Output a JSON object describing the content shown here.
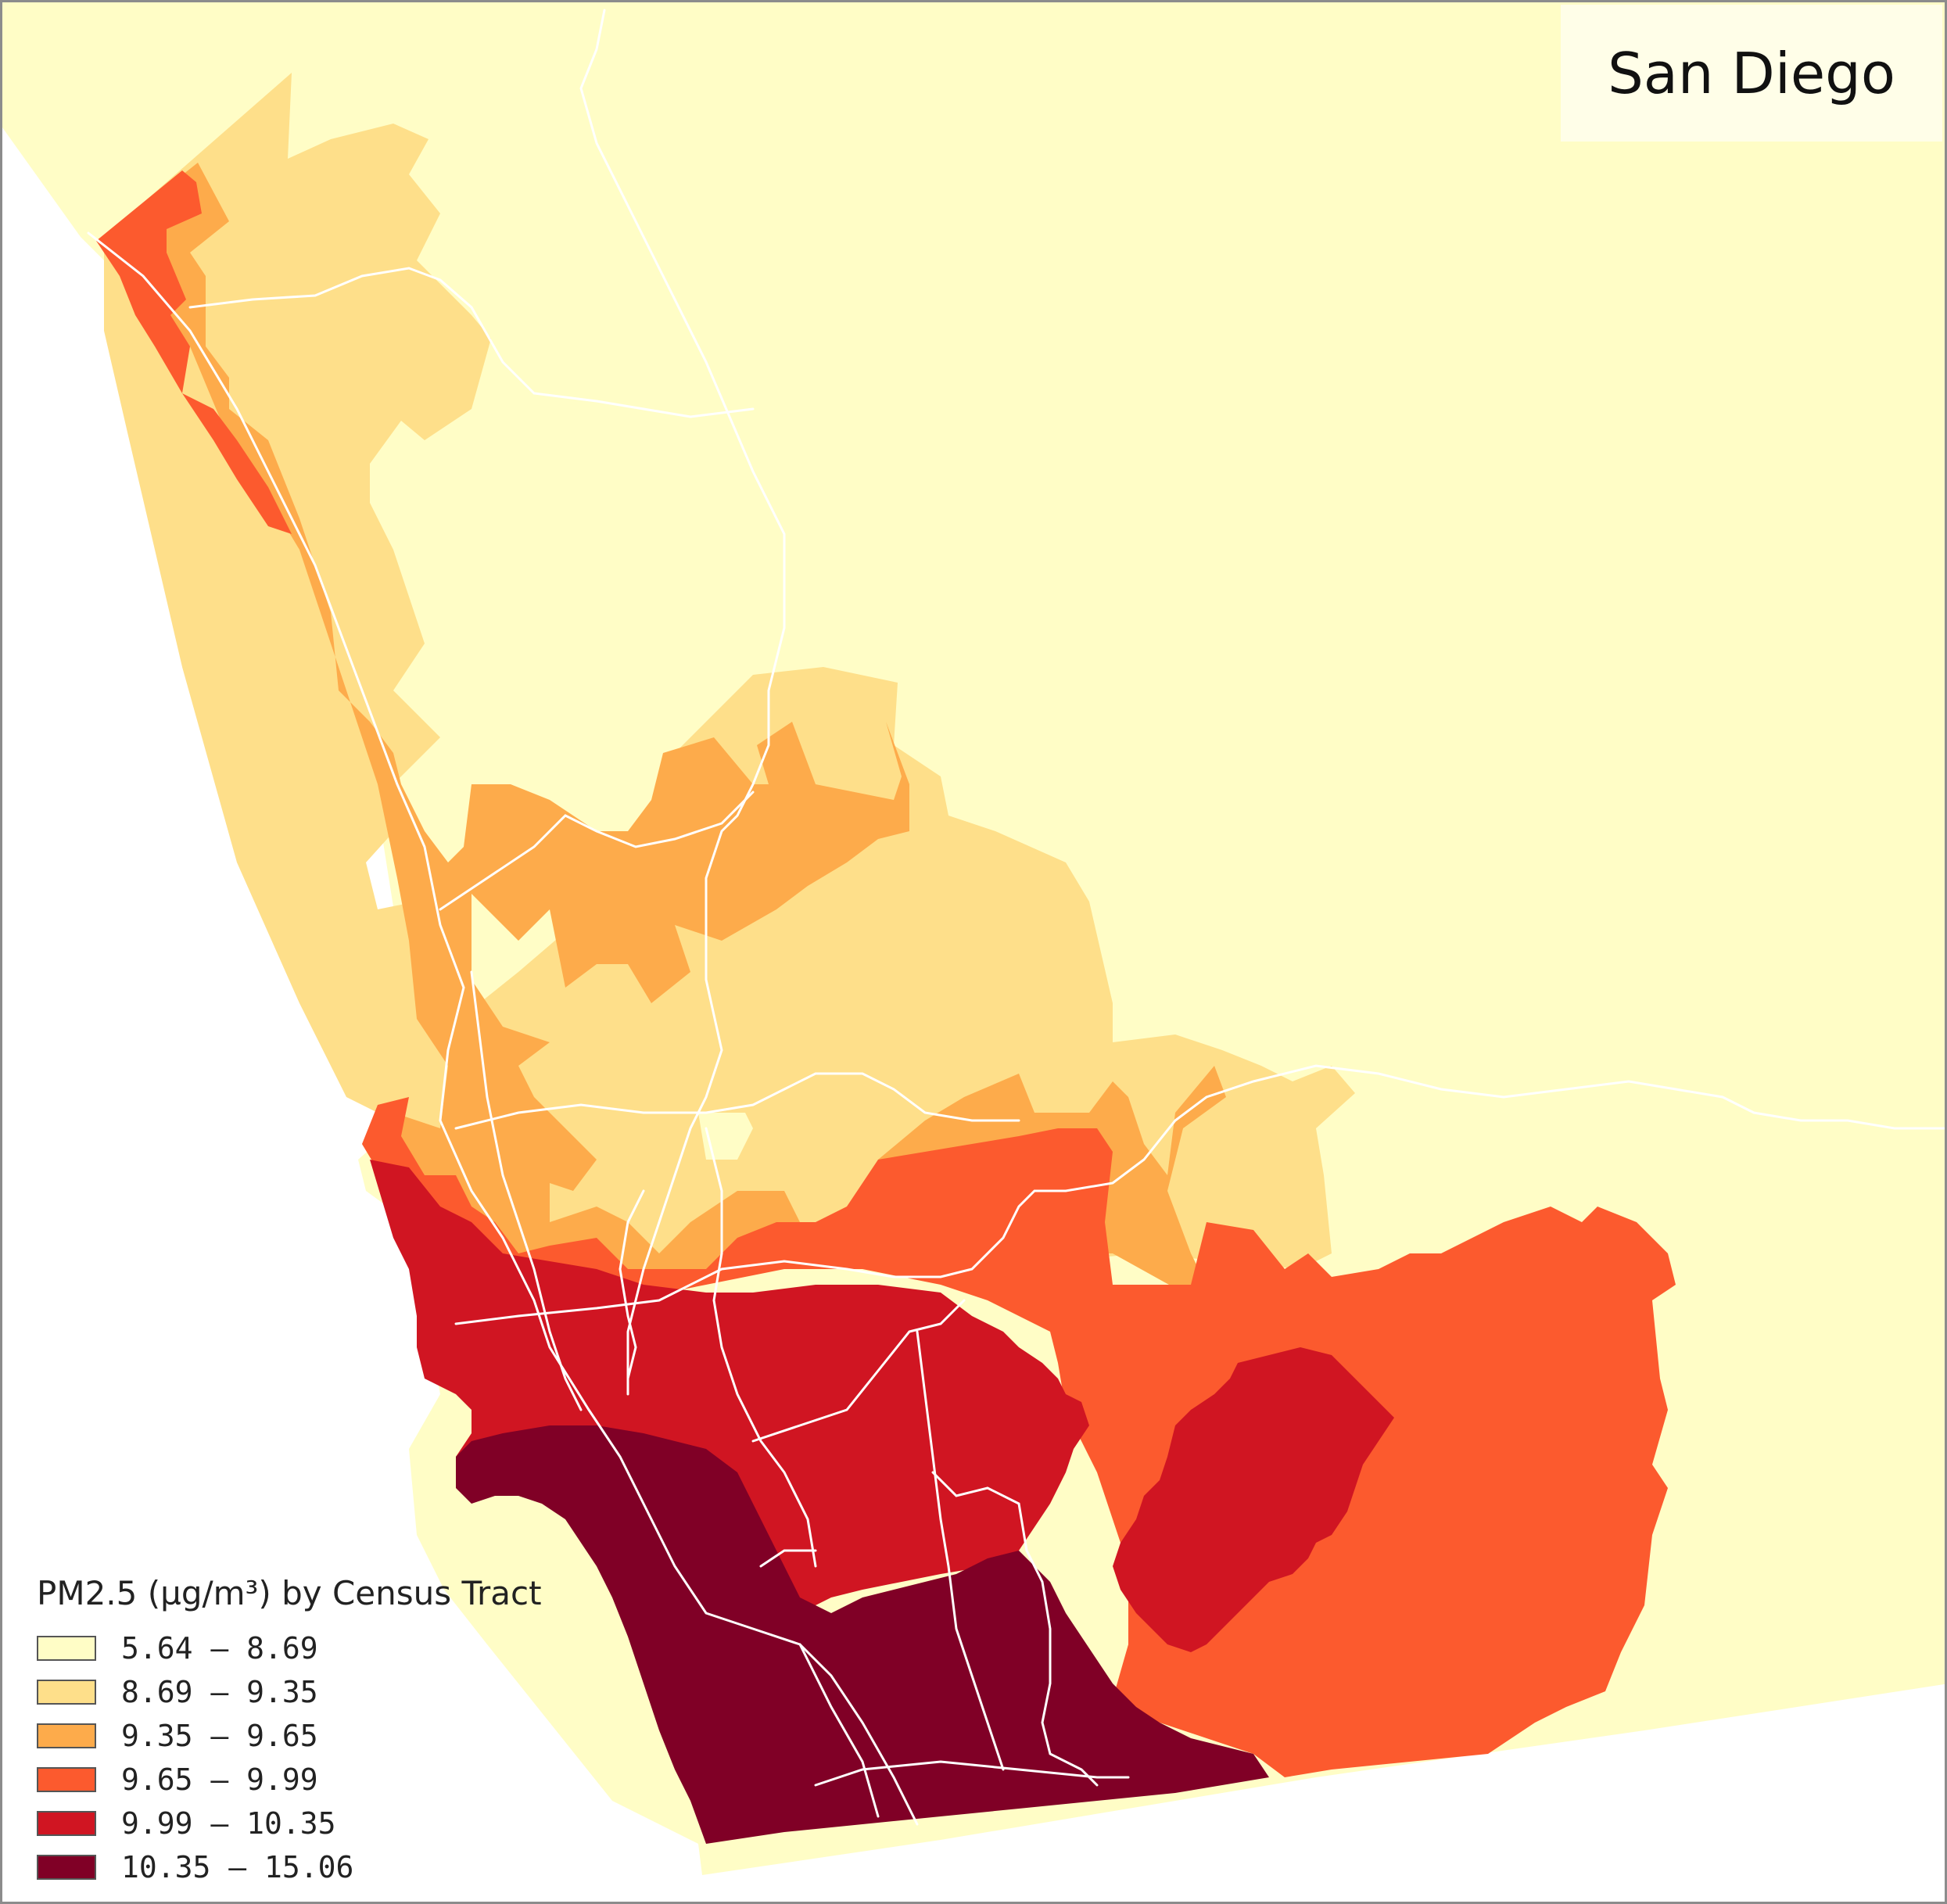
{
  "map": {
    "title": "San Diego",
    "colors": {
      "bin1": "#fffdc6",
      "bin2": "#fedf8a",
      "bin3": "#fdab4b",
      "bin4": "#fc5a2e",
      "bin5": "#d01522",
      "bin6": "#800026",
      "road": "#ffffff"
    }
  },
  "legend": {
    "title": "PM2.5 (µg/m³) by Census Tract",
    "items": [
      {
        "label": "5.64 – 8.69",
        "color": "#fffdc6"
      },
      {
        "label": "8.69 – 9.35",
        "color": "#fedf8a"
      },
      {
        "label": "9.35 – 9.65",
        "color": "#fdab4b"
      },
      {
        "label": "9.65 – 9.99",
        "color": "#fc5a2e"
      },
      {
        "label": "9.99 – 10.35",
        "color": "#d01522"
      },
      {
        "label": "10.35 – 15.06",
        "color": "#800026"
      }
    ]
  }
}
